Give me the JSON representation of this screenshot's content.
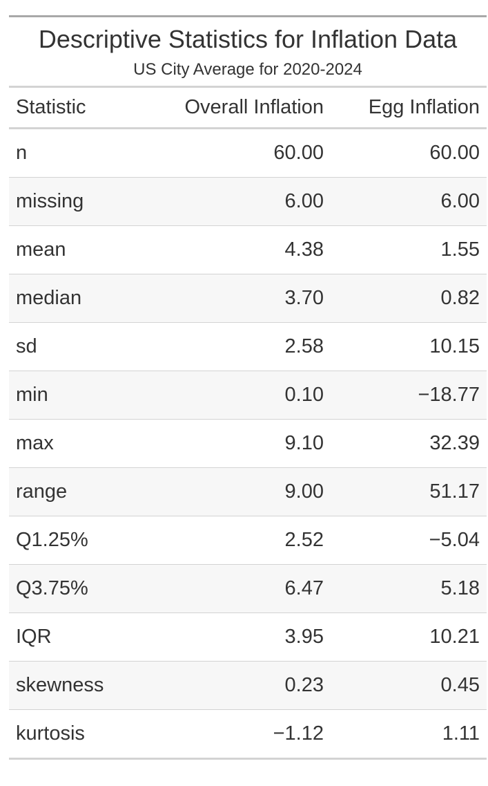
{
  "title": "Descriptive Statistics for Inflation Data",
  "subtitle": "US City Average for 2020-2024",
  "columns": [
    "Statistic",
    "Overall Inflation",
    "Egg Inflation"
  ],
  "rows": [
    {
      "statistic": "n",
      "overall": "60.00",
      "egg": "60.00"
    },
    {
      "statistic": "missing",
      "overall": "6.00",
      "egg": "6.00"
    },
    {
      "statistic": "mean",
      "overall": "4.38",
      "egg": "1.55"
    },
    {
      "statistic": "median",
      "overall": "3.70",
      "egg": "0.82"
    },
    {
      "statistic": "sd",
      "overall": "2.58",
      "egg": "10.15"
    },
    {
      "statistic": "min",
      "overall": "0.10",
      "egg": "−18.77"
    },
    {
      "statistic": "max",
      "overall": "9.10",
      "egg": "32.39"
    },
    {
      "statistic": "range",
      "overall": "9.00",
      "egg": "51.17"
    },
    {
      "statistic": "Q1.25%",
      "overall": "2.52",
      "egg": "−5.04"
    },
    {
      "statistic": "Q3.75%",
      "overall": "6.47",
      "egg": "5.18"
    },
    {
      "statistic": "IQR",
      "overall": "3.95",
      "egg": "10.21"
    },
    {
      "statistic": "skewness",
      "overall": "0.23",
      "egg": "0.45"
    },
    {
      "statistic": "kurtosis",
      "overall": "−1.12",
      "egg": "1.11"
    }
  ],
  "colors": {
    "text": "#333333",
    "rule": "#d3d3d3",
    "top_rule": "#a8a8a8",
    "striped_row": "#f7f7f7"
  }
}
